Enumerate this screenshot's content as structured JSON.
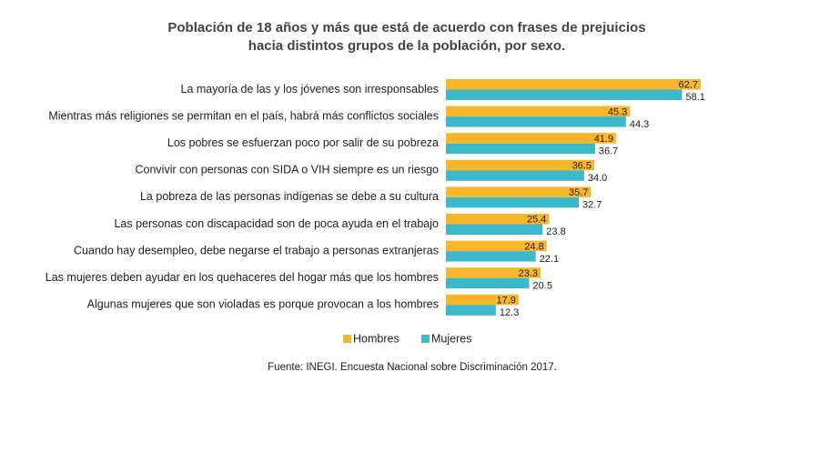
{
  "chart_data": {
    "type": "hbar",
    "title": "Población de 18 años y más que está de acuerdo con frases de prejuicios",
    "subtitle": "hacia distintos grupos de la población, por sexo.",
    "categories": [
      "La mayoría de las y los jóvenes son irresponsables",
      "Mientras más religiones se permitan en el país, habrá más conflictos sociales",
      "Los pobres se esfuerzan poco por salir de su pobreza",
      "Convivir con personas con SIDA o VIH siempre es un riesgo",
      "La pobreza de las personas indígenas se debe a su cultura",
      "Las personas con discapacidad son de poca ayuda en el trabajo",
      "Cuando hay desempleo, debe negarse el trabajo a personas extranjeras",
      "Las mujeres deben ayudar en los quehaceres del hogar más que los hombres",
      "Algunas mujeres que son violadas es porque provocan a los hombres"
    ],
    "series": [
      {
        "name": "Hombres",
        "color": "#f9b62b",
        "values": [
          62.7,
          45.3,
          41.9,
          36.5,
          35.7,
          25.4,
          24.8,
          23.3,
          17.9
        ]
      },
      {
        "name": "Mujeres",
        "color": "#3bb8c9",
        "values": [
          58.1,
          44.3,
          36.7,
          34.0,
          32.7,
          23.8,
          22.1,
          20.5,
          12.3
        ],
        "value_labels": [
          "58.1",
          "44.3",
          "36.7",
          "34.0",
          "32.7",
          "23.8",
          "22.1",
          "20.5",
          "12.3"
        ]
      }
    ],
    "source": "Fuente: INEGI. Encuesta Nacional sobre Discriminación 2017."
  }
}
